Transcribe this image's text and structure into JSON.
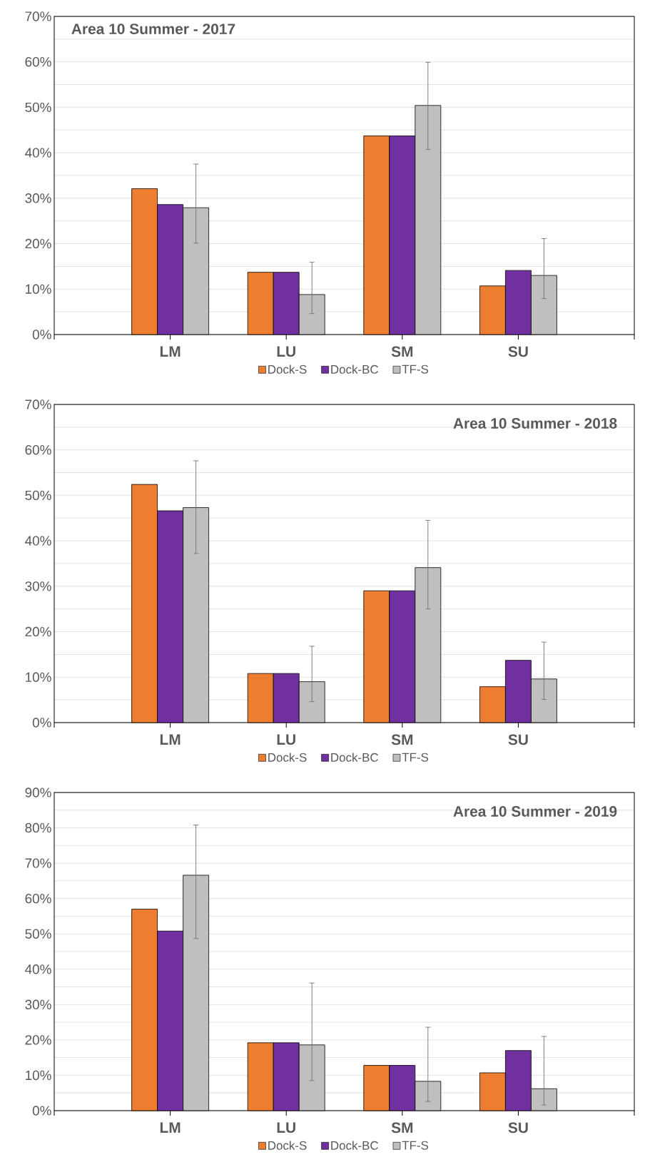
{
  "chart_data": [
    {
      "type": "bar",
      "title": "Area 10 Summer - 2017",
      "categories": [
        "LM",
        "LU",
        "SM",
        "SU"
      ],
      "legend": "bottom",
      "grid": "y",
      "ylim": [
        0,
        70
      ],
      "yticks": [
        {
          "value": 0,
          "label": "0%"
        },
        {
          "value": 5,
          "label": null
        },
        {
          "value": 10,
          "label": "10%"
        },
        {
          "value": 15,
          "label": null
        },
        {
          "value": 20,
          "label": "20%"
        },
        {
          "value": 25,
          "label": null
        },
        {
          "value": 30,
          "label": "30%"
        },
        {
          "value": 35,
          "label": null
        },
        {
          "value": 40,
          "label": "40%"
        },
        {
          "value": 45,
          "label": null
        },
        {
          "value": 50,
          "label": "50%"
        },
        {
          "value": 55,
          "label": null
        },
        {
          "value": 60,
          "label": "60%"
        },
        {
          "value": 65,
          "label": null
        },
        {
          "value": 70,
          "label": "70%"
        }
      ],
      "series": [
        {
          "name": "Dock-S",
          "color": "#ed7d31",
          "values": [
            32.1,
            13.7,
            43.7,
            10.7
          ]
        },
        {
          "name": "Dock-BC",
          "color": "#7030a0",
          "values": [
            28.6,
            13.7,
            43.7,
            14.1
          ]
        },
        {
          "name": "TF-S",
          "color": "#bfbfbf",
          "values": [
            27.9,
            8.8,
            50.4,
            13.0
          ],
          "errors": [
            [
              20.1,
              37.5
            ],
            [
              4.6,
              15.9
            ],
            [
              40.7,
              59.9
            ],
            [
              7.9,
              21.1
            ]
          ]
        }
      ]
    },
    {
      "type": "bar",
      "title": "Area 10 Summer - 2018",
      "categories": [
        "LM",
        "LU",
        "SM",
        "SU"
      ],
      "legend": "bottom",
      "grid": "y",
      "ylim": [
        0,
        70
      ],
      "yticks": [
        {
          "value": 0,
          "label": "0%"
        },
        {
          "value": 5,
          "label": null
        },
        {
          "value": 10,
          "label": "10%"
        },
        {
          "value": 15,
          "label": null
        },
        {
          "value": 20,
          "label": "20%"
        },
        {
          "value": 25,
          "label": null
        },
        {
          "value": 30,
          "label": "30%"
        },
        {
          "value": 35,
          "label": null
        },
        {
          "value": 40,
          "label": "40%"
        },
        {
          "value": 45,
          "label": null
        },
        {
          "value": 50,
          "label": "50%"
        },
        {
          "value": 55,
          "label": null
        },
        {
          "value": 60,
          "label": "60%"
        },
        {
          "value": 65,
          "label": null
        },
        {
          "value": 70,
          "label": "70%"
        }
      ],
      "series": [
        {
          "name": "Dock-S",
          "color": "#ed7d31",
          "values": [
            52.4,
            10.8,
            29.0,
            7.9
          ]
        },
        {
          "name": "Dock-BC",
          "color": "#7030a0",
          "values": [
            46.6,
            10.8,
            29.0,
            13.7
          ]
        },
        {
          "name": "TF-S",
          "color": "#bfbfbf",
          "values": [
            47.3,
            9.0,
            34.1,
            9.6
          ],
          "errors": [
            [
              37.2,
              57.6
            ],
            [
              4.6,
              16.8
            ],
            [
              25.0,
              44.5
            ],
            [
              5.1,
              17.7
            ]
          ]
        }
      ]
    },
    {
      "type": "bar",
      "title": "Area 10 Summer - 2019",
      "categories": [
        "LM",
        "LU",
        "SM",
        "SU"
      ],
      "legend": "bottom",
      "grid": "y",
      "ylim": [
        0,
        90
      ],
      "yticks": [
        {
          "value": 0,
          "label": "0%"
        },
        {
          "value": 5,
          "label": null
        },
        {
          "value": 10,
          "label": "10%"
        },
        {
          "value": 15,
          "label": null
        },
        {
          "value": 20,
          "label": "20%"
        },
        {
          "value": 25,
          "label": null
        },
        {
          "value": 30,
          "label": "30%"
        },
        {
          "value": 35,
          "label": null
        },
        {
          "value": 40,
          "label": "40%"
        },
        {
          "value": 45,
          "label": null
        },
        {
          "value": 50,
          "label": "50%"
        },
        {
          "value": 55,
          "label": null
        },
        {
          "value": 60,
          "label": "60%"
        },
        {
          "value": 65,
          "label": null
        },
        {
          "value": 70,
          "label": "70%"
        },
        {
          "value": 75,
          "label": null
        },
        {
          "value": 80,
          "label": "80%"
        },
        {
          "value": 85,
          "label": null
        },
        {
          "value": 90,
          "label": "90%"
        }
      ],
      "series": [
        {
          "name": "Dock-S",
          "color": "#ed7d31",
          "values": [
            57.0,
            19.2,
            12.8,
            10.7
          ]
        },
        {
          "name": "Dock-BC",
          "color": "#7030a0",
          "values": [
            50.8,
            19.2,
            12.8,
            17.0
          ]
        },
        {
          "name": "TF-S",
          "color": "#bfbfbf",
          "values": [
            66.6,
            18.6,
            8.3,
            6.2
          ],
          "errors": [
            [
              48.7,
              80.8
            ],
            [
              8.5,
              36.1
            ],
            [
              2.6,
              23.6
            ],
            [
              1.6,
              21.0
            ]
          ]
        }
      ]
    }
  ]
}
